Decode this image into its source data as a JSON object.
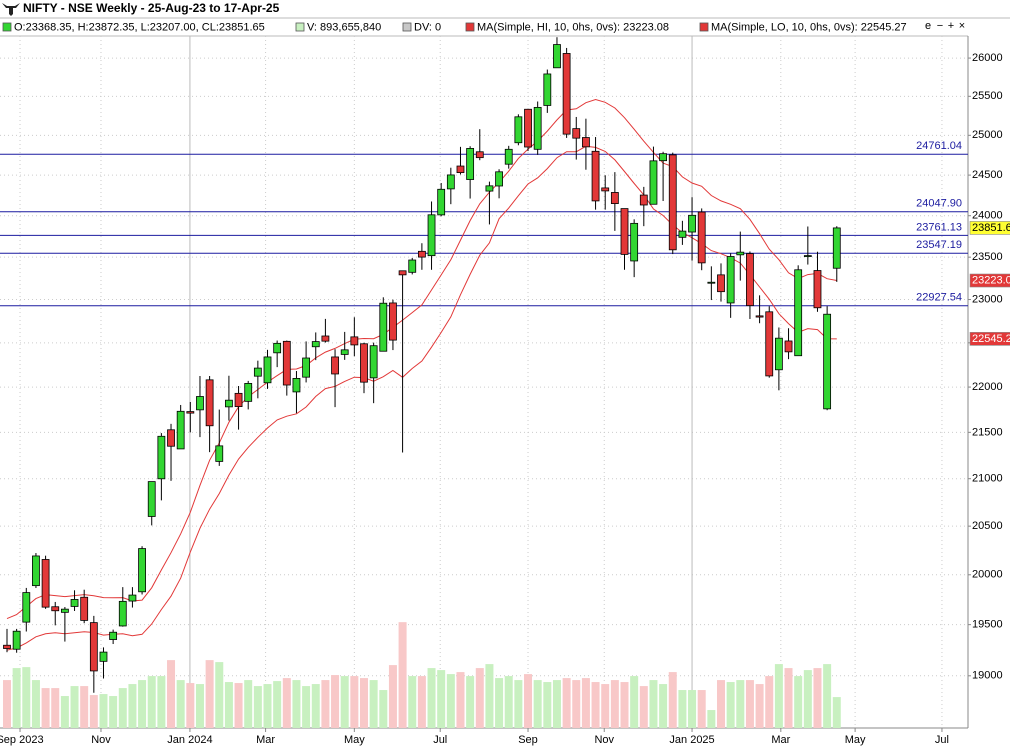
{
  "header": {
    "title": "NIFTY - NSE Weekly - 25-Aug-23 to 17-Apr-25",
    "legend": [
      {
        "text": "O:23368.35, H:23872.35, L:23207.00, CL:23851.65",
        "color": "#32d632"
      },
      {
        "text": "V: 893,655,840",
        "color": "#c8f0c0"
      },
      {
        "text": "DV: 0",
        "color": "#c8c8c8"
      },
      {
        "text": "MA(Simple, HI, 10, 0hs, 0vs): 23223.08",
        "color": "#e23838"
      },
      {
        "text": "MA(Simple, LO, 10, 0hs, 0vs): 22545.27",
        "color": "#e23838"
      }
    ],
    "toolbar": [
      "e",
      "−",
      "+",
      "×"
    ]
  },
  "chart_data": {
    "type": "candlestick",
    "up_color": "#32d632",
    "down_color": "#e23838",
    "volume_up_color": "#c8f0c0",
    "volume_down_color": "#f8c8c8",
    "level_color": "#1c1ca0",
    "last_color": "#ffff33",
    "ohlc": {
      "open": [
        19297,
        19258,
        19525,
        19890,
        20156,
        19678,
        19622,
        19681,
        19773,
        19520,
        19140,
        19353,
        19487,
        19735,
        19828,
        20601,
        20999,
        21528,
        21320,
        21728,
        21747,
        22081,
        21185,
        21780,
        21930,
        21841,
        22122,
        22048,
        22386,
        22517,
        21946,
        22111,
        22455,
        22578,
        22339,
        22368,
        22568,
        22489,
        22103,
        22404,
        22960,
        23338,
        23320,
        23570,
        23518,
        24010,
        24329,
        24613,
        24445,
        24792,
        24302,
        24365,
        24636,
        24906,
        25333,
        24823,
        25382,
        25872,
        26061,
        25085,
        24972,
        24798,
        24341,
        24285,
        24087,
        23455,
        24253,
        24140,
        24680,
        24753,
        23738,
        23802,
        24045,
        23196,
        23290,
        22960,
        23528,
        23543,
        22810,
        22857,
        22194,
        22521,
        22353,
        23515,
        23341,
        21758,
        23368.35
      ],
      "high": [
        19458,
        19458,
        19867,
        20222,
        20195,
        19726,
        19675,
        19843,
        19849,
        19587,
        19276,
        19451,
        19875,
        19875,
        20292,
        20961,
        21492,
        21593,
        21801,
        21834,
        22124,
        22124,
        21750,
        22127,
        22012,
        22069,
        22297,
        22420,
        22526,
        22526,
        22180,
        22516,
        22619,
        22775,
        22427,
        22625,
        22794,
        22501,
        22502,
        23026,
        22998,
        23338,
        23490,
        23667,
        24174,
        24402,
        24592,
        24854,
        24862,
        25078,
        24419,
        24573,
        24867,
        25268,
        25333,
        25433,
        25849,
        26277,
        26134,
        25234,
        25212,
        24978,
        24498,
        24537,
        24084,
        23956,
        24354,
        24857,
        24792,
        24781,
        23938,
        24226,
        24089,
        23391,
        23426,
        23546,
        23807,
        23568,
        23049,
        22922,
        22676,
        22667,
        23403,
        23869,
        23565,
        22923,
        23872.35
      ],
      "low": [
        19229,
        19224,
        19432,
        19866,
        19657,
        19493,
        19333,
        19636,
        19514,
        18837,
        18974,
        19309,
        19480,
        19670,
        19801,
        20508,
        20770,
        20977,
        21329,
        21500,
        21448,
        21285,
        21137,
        21629,
        21530,
        21752,
        21875,
        21980,
        22224,
        21905,
        21710,
        22052,
        22303,
        22503,
        21777,
        22306,
        22348,
        21932,
        21821,
        22404,
        22417,
        21281,
        23295,
        23350,
        23350,
        23993,
        24141,
        24508,
        24210,
        24686,
        23894,
        24213,
        24580,
        24874,
        24801,
        24753,
        25286,
        25871,
        24967,
        24694,
        24567,
        24074,
        24074,
        23816,
        23350,
        23263,
        23873,
        24140,
        24180,
        23537,
        23647,
        23460,
        23345,
        22994,
        22976,
        22787,
        23222,
        22774,
        22725,
        22105,
        21964,
        22314,
        22353,
        23412,
        22857,
        21743,
        23207.0
      ],
      "close": [
        19265,
        19435,
        19820,
        20192,
        19674,
        19638,
        19654,
        19751,
        19542,
        19047,
        19230,
        19425,
        19732,
        19795,
        20268,
        20969,
        21457,
        21349,
        21731,
        21711,
        21895,
        21572,
        21353,
        21854,
        21783,
        22041,
        22213,
        22339,
        22494,
        22023,
        22097,
        22327,
        22514,
        22519,
        22147,
        22420,
        22476,
        22055,
        22467,
        22957,
        22531,
        23290,
        23466,
        23501,
        24011,
        24324,
        24502,
        24531,
        24834,
        24718,
        24367,
        24541,
        24823,
        25236,
        24852,
        25357,
        25791,
        26179,
        25015,
        24964,
        24854,
        24181,
        24304,
        24148,
        23533,
        23907,
        24131,
        24678,
        24768,
        23588,
        23813,
        24005,
        23432,
        23203,
        23092,
        23508,
        23560,
        22929,
        22796,
        22125,
        22553,
        22397,
        23350,
        23519,
        22904,
        22829,
        23851.65
      ]
    },
    "series": [
      {
        "color": "#e23838",
        "values": [
          19560,
          19600,
          19680,
          19760,
          19800,
          19790,
          19780,
          19790,
          19800,
          19788,
          19770,
          19769,
          19770,
          19735,
          19745,
          19868,
          20050,
          20225,
          20420,
          20645,
          20930,
          21197,
          21385,
          21610,
          21782,
          21893,
          21973,
          22056,
          22128,
          22198,
          22203,
          22242,
          22329,
          22394,
          22436,
          22491,
          22541,
          22549,
          22547,
          22597,
          22678,
          22761,
          22848,
          22937,
          23112,
          23289,
          23469,
          23704,
          23940,
          24146,
          24288,
          24411,
          24549,
          24709,
          24825,
          24928,
          25054,
          25196,
          25323,
          25339,
          25418,
          25459,
          25422,
          25349,
          25224,
          25076,
          24926,
          24784,
          24650,
          24605,
          24478,
          24402,
          24361,
          24247,
          24181,
          24140,
          24085,
          23956,
          23782,
          23596,
          23470,
          23314,
          23246,
          23293,
          23307,
          23245,
          23223.08
        ]
      },
      {
        "color": "#e23838",
        "values": [
          19250,
          19270,
          19320,
          19380,
          19410,
          19420,
          19410,
          19420,
          19430,
          19422,
          19397,
          19405,
          19410,
          19390,
          19405,
          19506,
          19650,
          19784,
          19966,
          20232,
          20479,
          20677,
          20843,
          21038,
          21211,
          21336,
          21446,
          21547,
          21636,
          21677,
          21703,
          21779,
          21896,
          21983,
          22008,
          22064,
          22111,
          22106,
          22066,
          22116,
          22186,
          22109,
          22208,
          22293,
          22450,
          22619,
          22798,
          23056,
          23295,
          23523,
          23671,
          23964,
          24093,
          24245,
          24390,
          24466,
          24581,
          24717,
          24793,
          24793,
          24861,
          24847,
          24796,
          24690,
          24545,
          24396,
          24255,
          24082,
          24003,
          23887,
          23795,
          23734,
          23661,
          23579,
          23542,
          23494,
          23429,
          23292,
          23147,
          23004,
          22835,
          22721,
          22621,
          22663,
          22651,
          22547,
          22545.27
        ]
      }
    ],
    "volume": {
      "axis": "y2",
      "values": [
        1385000000,
        1732000000,
        1760000000,
        1385000000,
        1154000000,
        1154000000,
        924000000,
        1212000000,
        1212000000,
        952000000,
        981000000,
        924000000,
        1154000000,
        1270000000,
        1385000000,
        1501000000,
        1501000000,
        1962000000,
        1385000000,
        1299000000,
        1270000000,
        1962000000,
        1905000000,
        1328000000,
        1299000000,
        1385000000,
        1212000000,
        1270000000,
        1356000000,
        1443000000,
        1385000000,
        1212000000,
        1270000000,
        1385000000,
        1530000000,
        1501000000,
        1501000000,
        1443000000,
        1385000000,
        1097000000,
        1818000000,
        3059000000,
        1501000000,
        1501000000,
        1732000000,
        1674000000,
        1558000000,
        1616000000,
        1501000000,
        1732000000,
        1847000000,
        1443000000,
        1501000000,
        1385000000,
        1558000000,
        1385000000,
        1328000000,
        1385000000,
        1443000000,
        1385000000,
        1443000000,
        1328000000,
        1270000000,
        1385000000,
        1328000000,
        1501000000,
        1212000000,
        1385000000,
        1270000000,
        1616000000,
        1097000000,
        1097000000,
        1097000000,
        519000000,
        1385000000,
        1328000000,
        1385000000,
        1385000000,
        1270000000,
        1501000000,
        1847000000,
        1732000000,
        1501000000,
        1674000000,
        1732000000,
        1847000000,
        893655840
      ]
    },
    "levels": [
      24761.04,
      {
        "value": 24047.9,
        "label": "24047.90"
      },
      23761.13,
      23547.19,
      22927.54
    ],
    "log_scale": true,
    "grid": true,
    "ylim": [
      18503,
      26293
    ],
    "y2lim": [
      0,
      20000000000
    ],
    "yticks": [
      19000,
      19500,
      20000,
      20500,
      21000,
      21500,
      22000,
      22500,
      23000,
      23500,
      24000,
      24500,
      25000,
      25500,
      26000
    ],
    "xlim": [
      -0.725,
      99.6
    ],
    "xticks": [
      {
        "value": 1.35,
        "label": "Sep 2023"
      },
      {
        "value": 9.74,
        "label": "Nov"
      },
      {
        "value": 18.96,
        "label": "Jan 2024"
      },
      {
        "value": 26.8,
        "label": "Mar"
      },
      {
        "value": 36,
        "label": "May"
      },
      {
        "value": 44.9,
        "label": "Jul"
      },
      {
        "value": 54,
        "label": "Sep"
      },
      {
        "value": 61.9,
        "label": "Nov"
      },
      {
        "value": 71,
        "label": "Jan 2025"
      },
      {
        "value": 80.2,
        "label": "Mar"
      },
      {
        "value": 87.9,
        "label": "May"
      },
      {
        "value": 96.9,
        "label": "Jul"
      }
    ]
  }
}
